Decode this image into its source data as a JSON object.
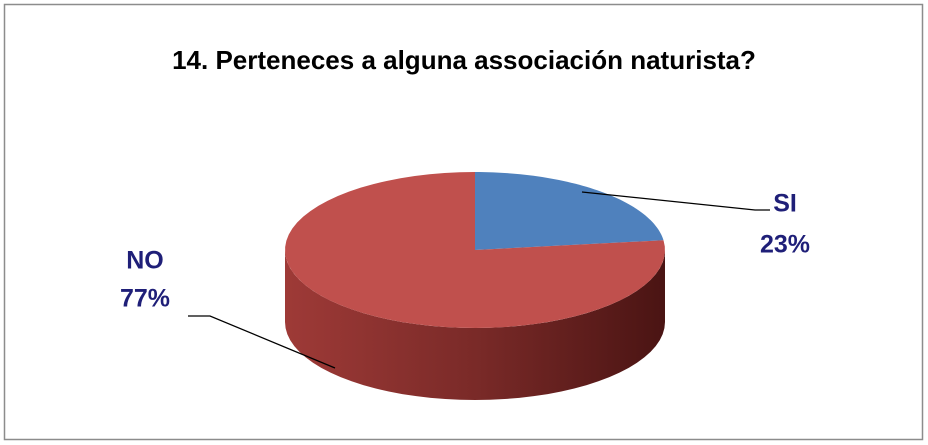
{
  "chart_data": {
    "type": "pie",
    "title": "14. Perteneces a alguna associación naturista?",
    "categories": [
      "SI",
      "NO"
    ],
    "values": [
      23,
      77
    ],
    "value_labels": [
      "23%",
      "77%"
    ],
    "colors": [
      "#4f81bd",
      "#c0504d"
    ]
  }
}
